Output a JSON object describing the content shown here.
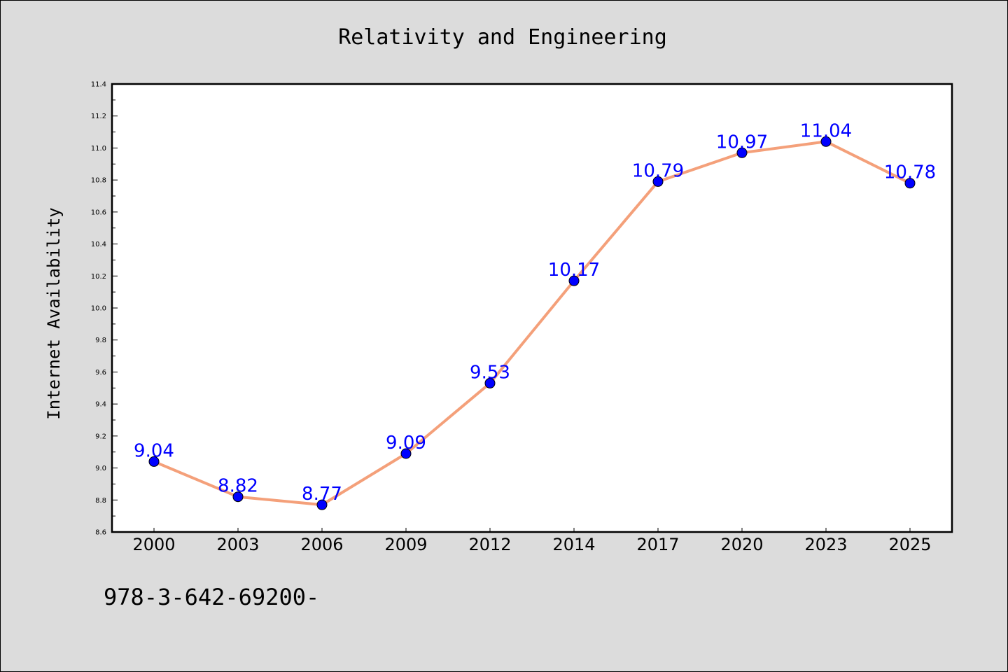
{
  "chart_data": {
    "type": "line",
    "title": "Relativity and Engineering",
    "xlabel": "",
    "ylabel": "Internet Availability",
    "categories": [
      "2000",
      "2003",
      "2006",
      "2009",
      "2012",
      "2014",
      "2017",
      "2020",
      "2023",
      "2025"
    ],
    "values": [
      9.04,
      8.82,
      8.77,
      9.09,
      9.53,
      10.17,
      10.79,
      10.97,
      11.04,
      10.78
    ],
    "data_labels": [
      "9.04",
      "8.82",
      "8.77",
      "9.09",
      "9.53",
      "10.17",
      "10.79",
      "10.97",
      "11.04",
      "10.78"
    ],
    "ylim": [
      8.6,
      11.4
    ],
    "yticks": [
      "8.6",
      "8.8",
      "9.0",
      "9.2",
      "9.4",
      "9.6",
      "9.8",
      "10.0",
      "10.2",
      "10.4",
      "10.6",
      "10.8",
      "11.0",
      "11.2",
      "11.4"
    ],
    "grid": false,
    "colors": {
      "line": "#f4a07a",
      "marker": "#0000ff",
      "label": "#0000ff"
    }
  },
  "footnote": "978-3-642-69200-"
}
